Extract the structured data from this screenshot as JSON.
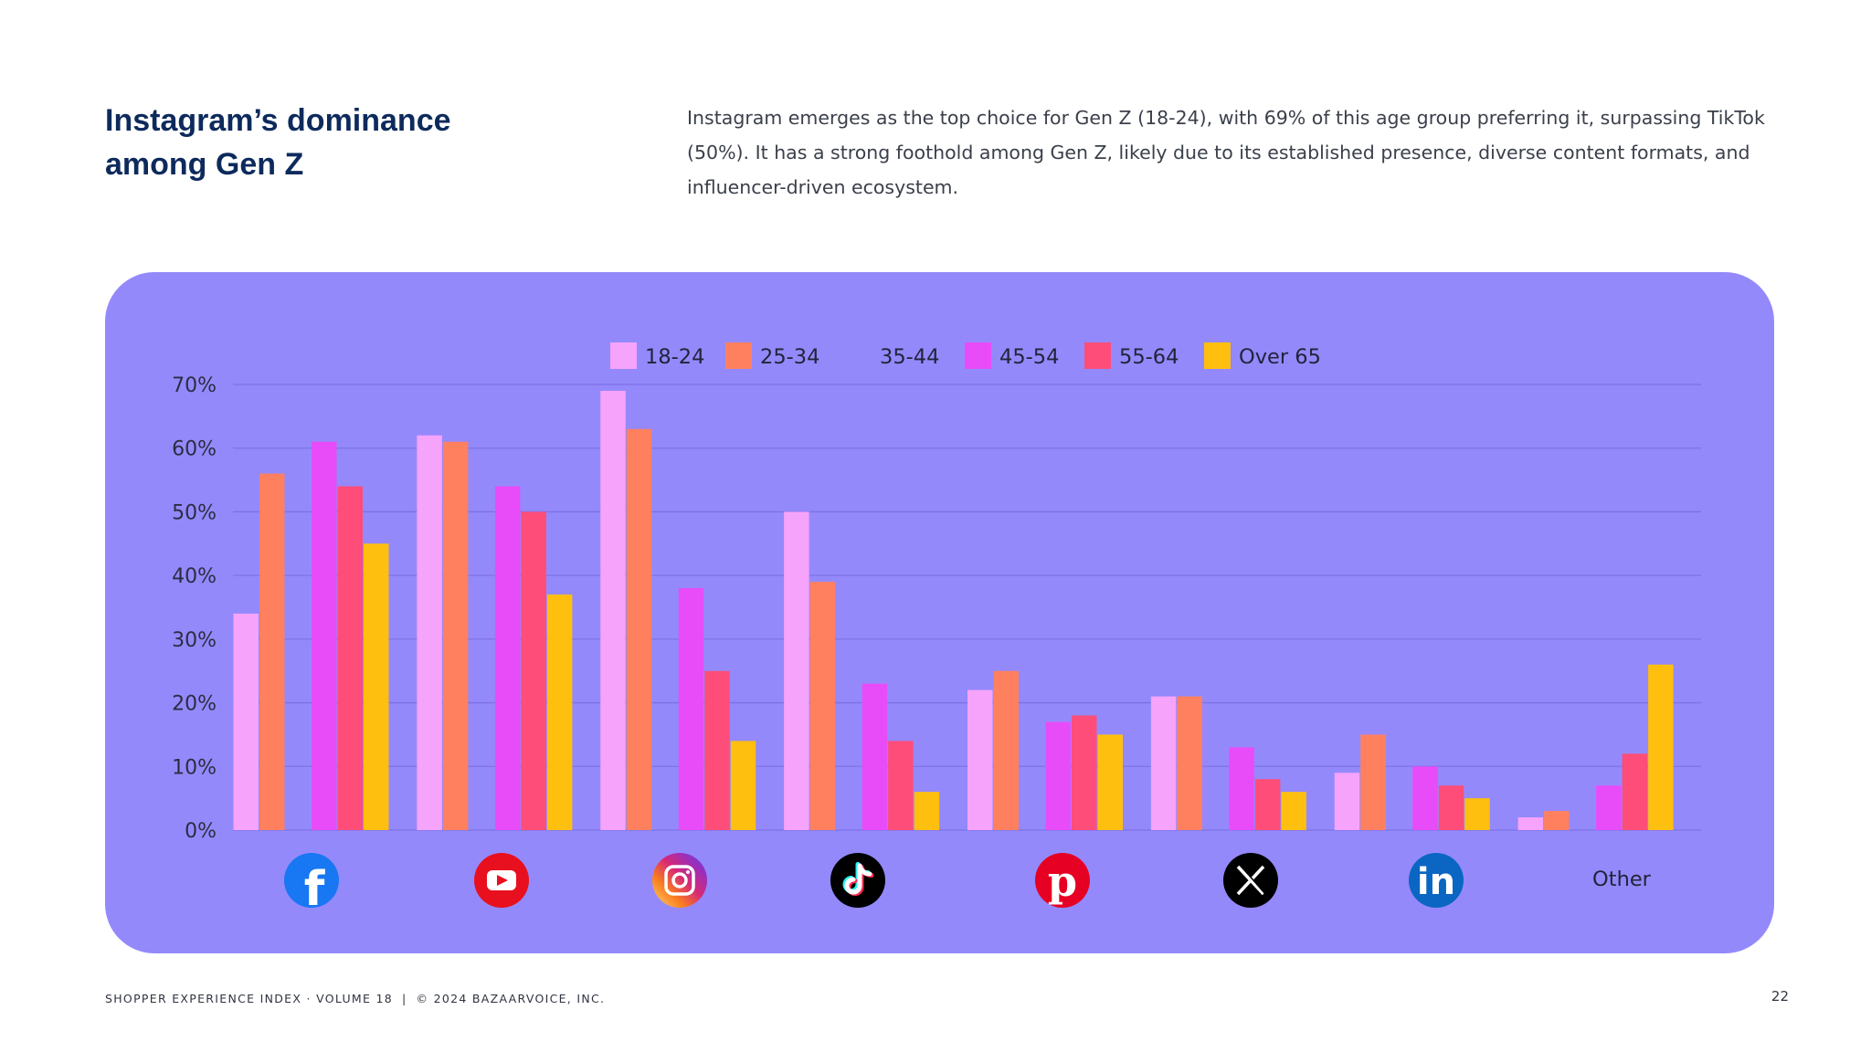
{
  "header": {
    "title_line1": "Instagram’s dominance",
    "title_line2": "among Gen Z",
    "intro": "Instagram emerges as the top choice for Gen Z (18-24), with 69% of this age group preferring it, surpassing TikTok (50%). It has a strong foothold among Gen Z, likely due to its established presence, diverse content formats, and influencer-driven ecosystem."
  },
  "footer": {
    "left": "SHOPPER EXPERIENCE INDEX · VOLUME 18",
    "separator": "|",
    "copyright": "© 2024 BAZAARVOICE, INC.",
    "page_number": "22"
  },
  "colors": {
    "panel": "#9489fb",
    "grid": "#7e73e6",
    "18-24": "#f5a3fb",
    "25-34": "#ff805f",
    "35-44": "#9489fb",
    "45-54": "#e84cf8",
    "55-64": "#ff4d79",
    "Over 65": "#ffbf0f"
  },
  "chart_data": {
    "type": "bar",
    "title": "",
    "xlabel": "",
    "ylabel": "",
    "ylim": [
      0,
      70
    ],
    "yticks": [
      0,
      10,
      20,
      30,
      40,
      50,
      60,
      70
    ],
    "ytick_labels": [
      "0%",
      "10%",
      "20%",
      "30%",
      "40%",
      "50%",
      "60%",
      "70%"
    ],
    "grid": true,
    "legend_position": "top-center",
    "categories": [
      {
        "name": "Facebook",
        "icon": "facebook-icon",
        "label": ""
      },
      {
        "name": "YouTube",
        "icon": "youtube-icon",
        "label": ""
      },
      {
        "name": "Instagram",
        "icon": "instagram-icon",
        "label": ""
      },
      {
        "name": "TikTok",
        "icon": "tiktok-icon",
        "label": ""
      },
      {
        "name": "Pinterest",
        "icon": "pinterest-icon",
        "label": ""
      },
      {
        "name": "X",
        "icon": "x-icon",
        "label": ""
      },
      {
        "name": "LinkedIn",
        "icon": "linkedin-icon",
        "label": ""
      },
      {
        "name": "Other",
        "icon": "",
        "label": "Other"
      }
    ],
    "series": [
      {
        "name": "18-24",
        "values": [
          34,
          62,
          69,
          50,
          22,
          21,
          9,
          2
        ]
      },
      {
        "name": "25-34",
        "values": [
          56,
          61,
          63,
          39,
          25,
          21,
          15,
          3
        ]
      },
      {
        "name": "35-44",
        "values": [
          0,
          0,
          0,
          0,
          0,
          0,
          0,
          0
        ]
      },
      {
        "name": "45-54",
        "values": [
          61,
          54,
          38,
          23,
          17,
          13,
          10,
          7
        ]
      },
      {
        "name": "55-64",
        "values": [
          54,
          50,
          25,
          14,
          18,
          8,
          7,
          12
        ]
      },
      {
        "name": "Over 65",
        "values": [
          45,
          37,
          14,
          6,
          15,
          6,
          5,
          26
        ]
      }
    ]
  }
}
